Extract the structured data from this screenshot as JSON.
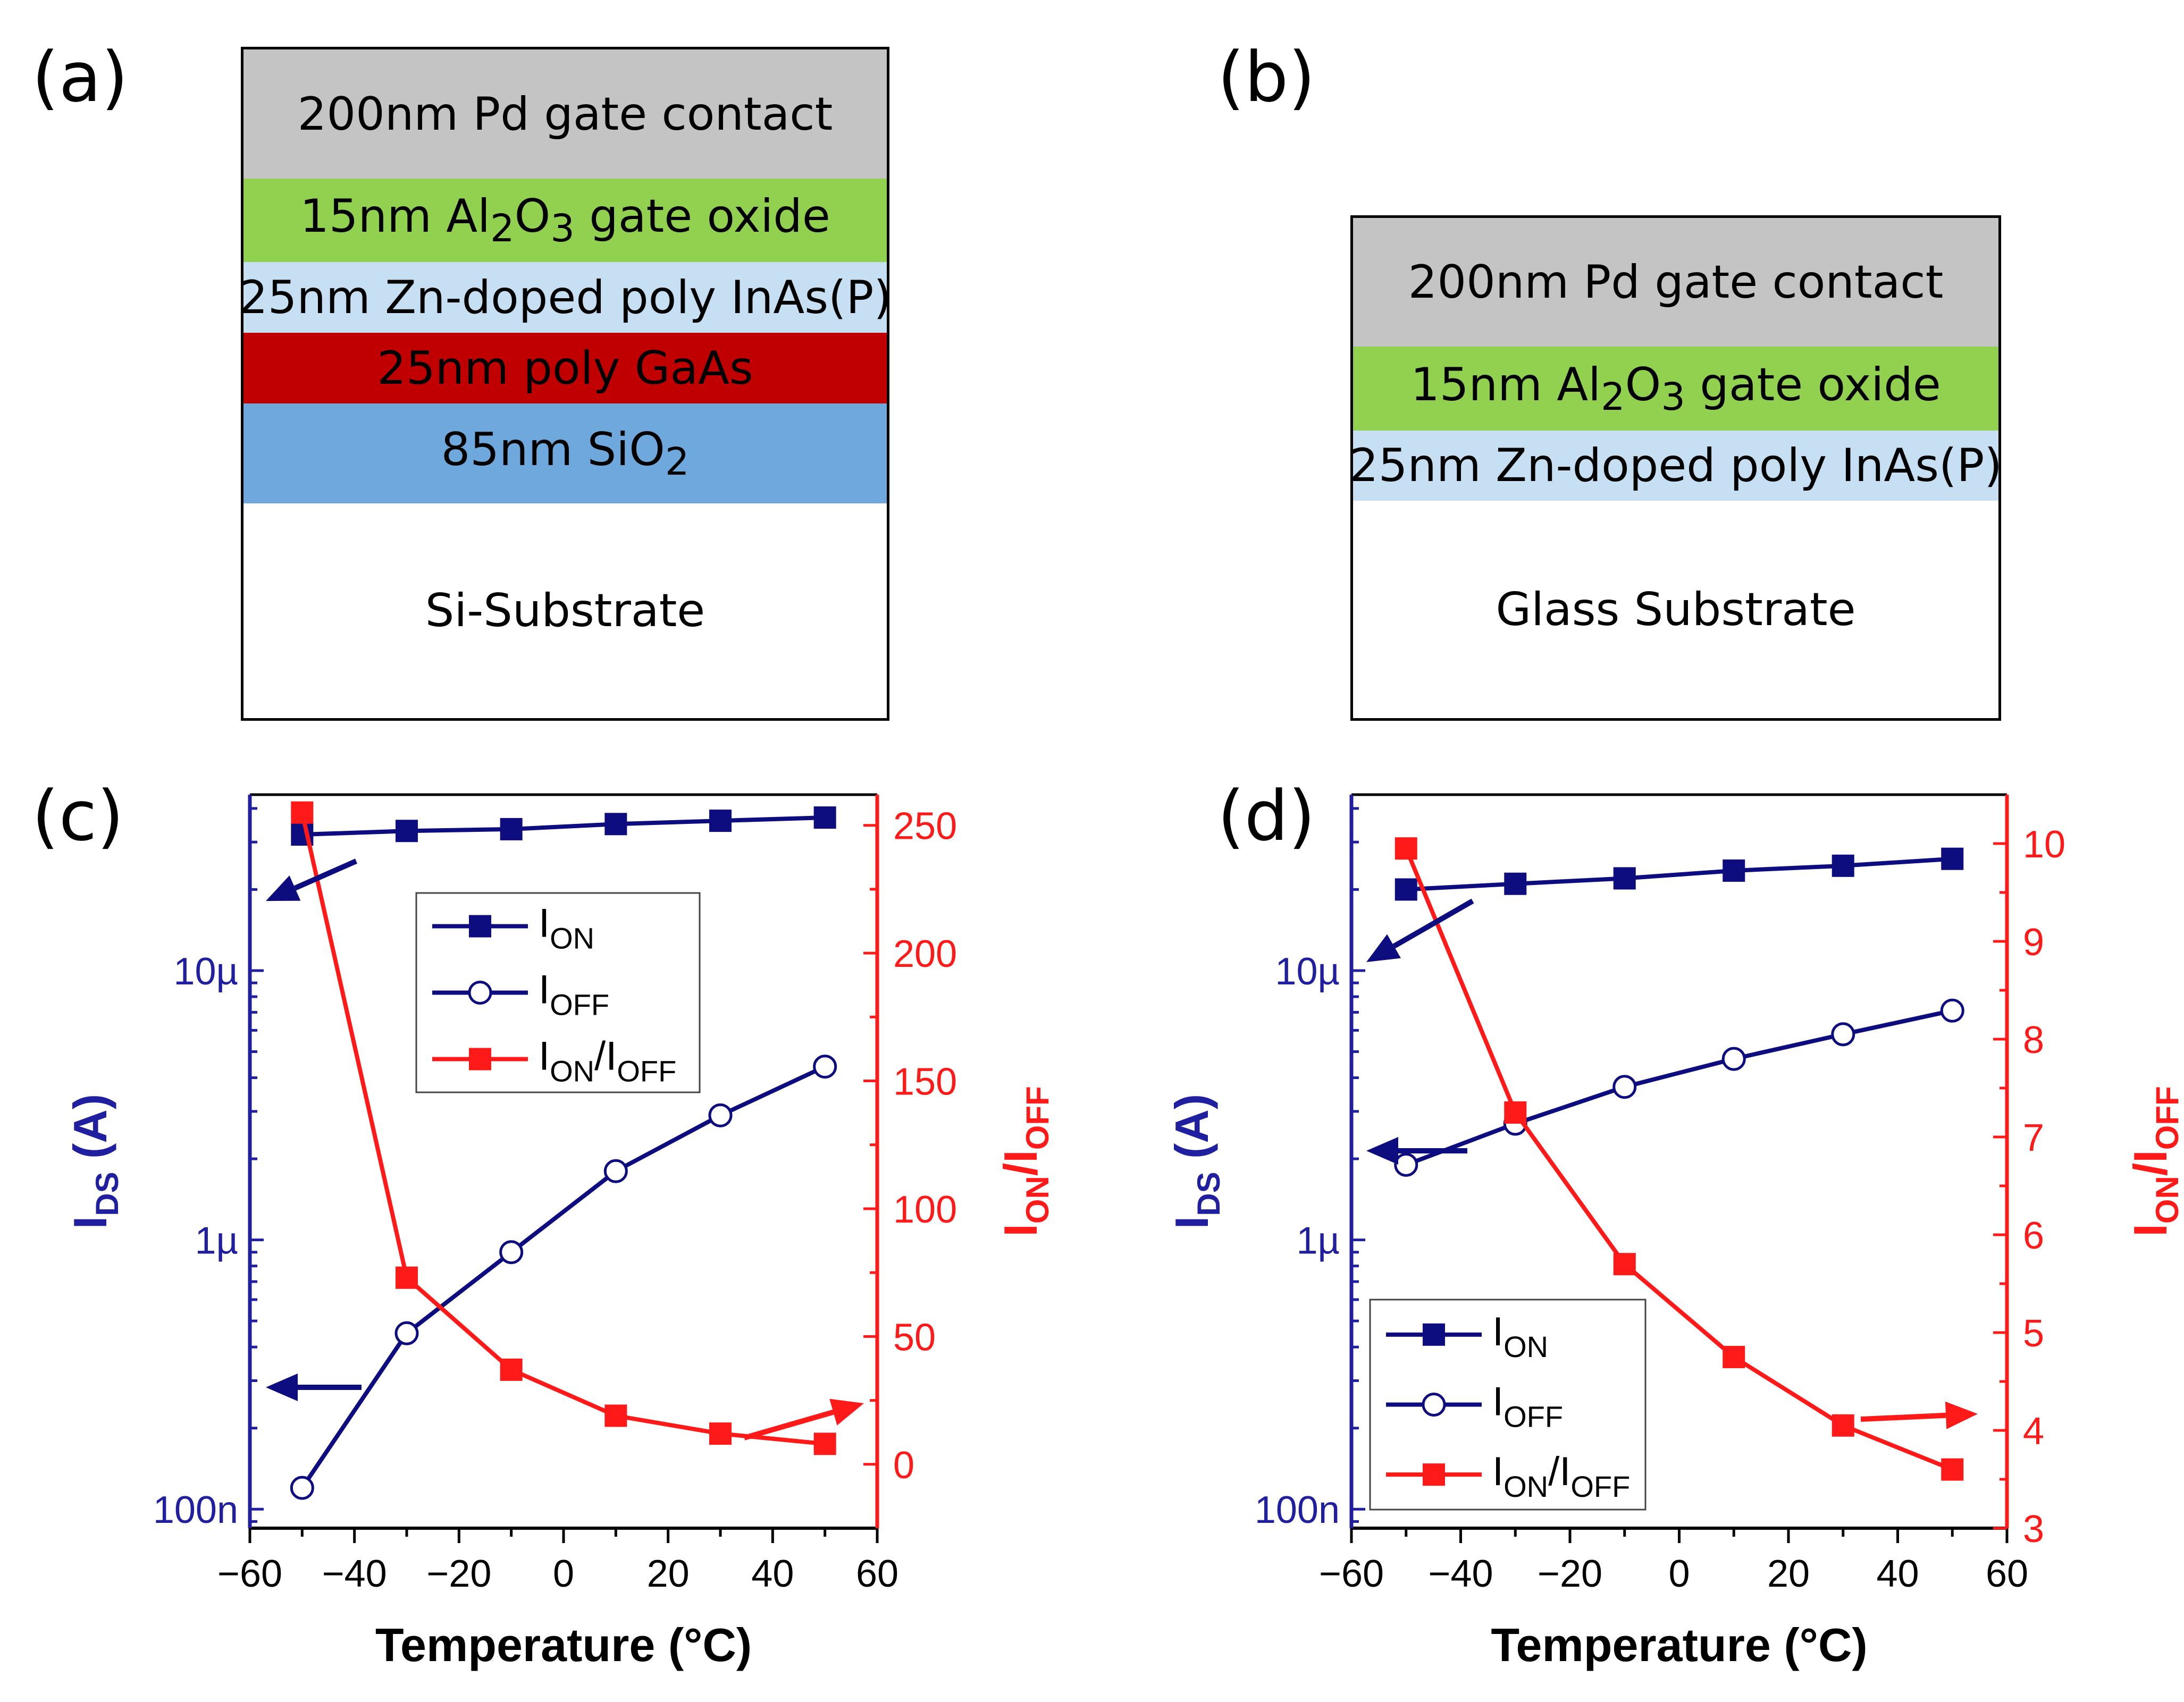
{
  "panels": {
    "a": {
      "label": "(a)"
    },
    "b": {
      "label": "(b)"
    },
    "c": {
      "label": "(c)"
    },
    "d": {
      "label": "(d)"
    }
  },
  "stack_a": {
    "layers": [
      {
        "text": "200nm Pd gate contact",
        "color": "#c4c4c4"
      },
      {
        "text": "15nm Al2O3 gate oxide",
        "color": "#92d050"
      },
      {
        "text": "25nm Zn-doped poly InAs(P)",
        "color": "#c6dff2"
      },
      {
        "text": "25nm poly GaAs",
        "color": "#c00000"
      },
      {
        "text": "85nm SiO2",
        "color": "#6fa8dc"
      },
      {
        "text": "Si-Substrate",
        "color": "#ffffff"
      }
    ]
  },
  "stack_b": {
    "layers": [
      {
        "text": "200nm Pd gate contact",
        "color": "#c4c4c4"
      },
      {
        "text": "15nm Al2O3 gate oxide",
        "color": "#92d050"
      },
      {
        "text": "25nm Zn-doped poly InAs(P)",
        "color": "#c6dff2"
      },
      {
        "text": "Glass Substrate",
        "color": "#ffffff"
      }
    ]
  },
  "colors": {
    "ids_axis": "#1f1fa0",
    "ratio_axis": "#ff1a1a",
    "ion": "#0d0d80",
    "ratio": "#ff1a1a"
  },
  "chart_data": [
    {
      "panel": "c",
      "type": "line",
      "xlabel": "Temperature (°C)",
      "ylabel_left": "IDS (A)",
      "ylabel_right": "ION/IOFF",
      "xlim": [
        -60,
        60
      ],
      "xticks": [
        "−60",
        "−40",
        "−20",
        "0",
        "20",
        "40",
        "60"
      ],
      "ylim_left": [
        8.5e-08,
        4.5e-05
      ],
      "yscale_left": "log",
      "yticks_left": [
        "100n",
        "1µ",
        "10µ"
      ],
      "ylim_right": [
        -25,
        262
      ],
      "yticks_right": [
        "0",
        "50",
        "100",
        "150",
        "200",
        "250"
      ],
      "legend_position": "upper-center",
      "series": [
        {
          "name": "ION",
          "axis": "left",
          "marker": "filled-square",
          "x": [
            -50,
            -30,
            -10,
            10,
            30,
            50
          ],
          "values": [
            3.2e-05,
            3.3e-05,
            3.35e-05,
            3.5e-05,
            3.6e-05,
            3.7e-05
          ]
        },
        {
          "name": "IOFF",
          "axis": "left",
          "marker": "open-circle",
          "x": [
            -50,
            -30,
            -10,
            10,
            30,
            50
          ],
          "values": [
            1.2e-07,
            4.5e-07,
            9e-07,
            1.8e-06,
            2.9e-06,
            4.4e-06
          ]
        },
        {
          "name": "ION/IOFF",
          "axis": "right",
          "marker": "filled-square",
          "x": [
            -50,
            -30,
            -10,
            10,
            30,
            50
          ],
          "values": [
            255,
            73,
            37,
            19,
            12,
            8
          ]
        }
      ]
    },
    {
      "panel": "d",
      "type": "line",
      "xlabel": "Temperature (°C)",
      "ylabel_left": "IDS (A)",
      "ylabel_right": "ION/IOFF",
      "xlim": [
        -60,
        60
      ],
      "xticks": [
        "−60",
        "−40",
        "−20",
        "0",
        "20",
        "40",
        "60"
      ],
      "ylim_left": [
        8.5e-08,
        4.5e-05
      ],
      "yscale_left": "log",
      "yticks_left": [
        "100n",
        "1µ",
        "10µ"
      ],
      "ylim_right": [
        3,
        10.5
      ],
      "yticks_right": [
        "3",
        "4",
        "5",
        "6",
        "7",
        "8",
        "9",
        "10"
      ],
      "legend_position": "lower-left",
      "series": [
        {
          "name": "ION",
          "axis": "left",
          "marker": "filled-square",
          "x": [
            -50,
            -30,
            -10,
            10,
            30,
            50
          ],
          "values": [
            2e-05,
            2.1e-05,
            2.2e-05,
            2.35e-05,
            2.45e-05,
            2.6e-05
          ]
        },
        {
          "name": "IOFF",
          "axis": "left",
          "marker": "open-circle",
          "x": [
            -50,
            -30,
            -10,
            10,
            30,
            50
          ],
          "values": [
            1.9e-06,
            2.7e-06,
            3.7e-06,
            4.7e-06,
            5.8e-06,
            7.1e-06
          ]
        },
        {
          "name": "ION/IOFF",
          "axis": "right",
          "marker": "filled-square",
          "x": [
            -50,
            -30,
            -10,
            10,
            30,
            50
          ],
          "values": [
            9.95,
            7.25,
            5.7,
            4.75,
            4.05,
            3.6
          ]
        }
      ]
    }
  ]
}
